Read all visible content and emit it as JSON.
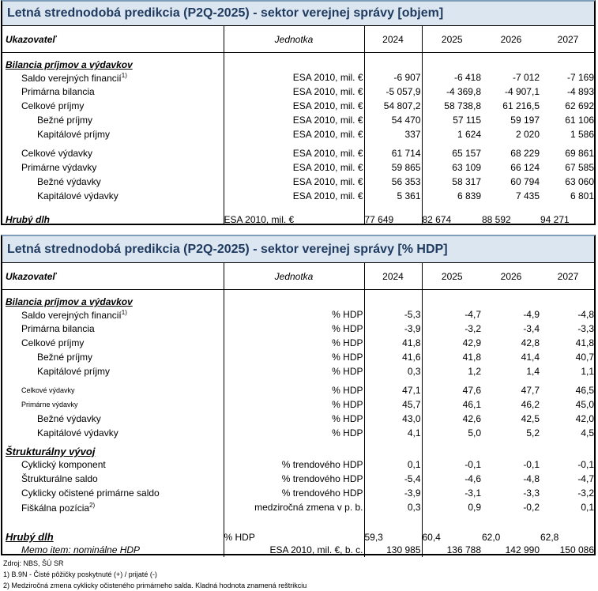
{
  "tables": [
    {
      "title": "Letná strednodobá predikcia (P2Q-2025) - sektor verejnej správy [objem]",
      "header": {
        "indicator": "Ukazovateľ",
        "unit": "Jednotka",
        "years": [
          "2024",
          "2025",
          "2026",
          "2027"
        ]
      },
      "rows": [
        {
          "type": "section",
          "label": "Bilancia príjmov a výdavkov"
        },
        {
          "label": "Saldo verejných financií",
          "sup": "1)",
          "level": 1,
          "unit": "ESA 2010, mil. €",
          "values": [
            "-6 907",
            "-6 418",
            "-7 012",
            "-7 169"
          ]
        },
        {
          "label": "Primárna bilancia",
          "level": 1,
          "unit": "ESA 2010, mil. €",
          "values": [
            "-5 057,9",
            "-4 369,8",
            "-4 907,1",
            "-4 893"
          ]
        },
        {
          "label": "Celkové príjmy",
          "level": 1,
          "unit": "ESA 2010, mil. €",
          "values": [
            "54 807,2",
            "58 738,8",
            "61 216,5",
            "62 692"
          ]
        },
        {
          "label": "Bežné príjmy",
          "level": 2,
          "unit": "ESA 2010, mil. €",
          "values": [
            "54 470",
            "57 115",
            "59 197",
            "61 106"
          ]
        },
        {
          "label": "Kapitálové príjmy",
          "level": 2,
          "unit": "ESA 2010, mil. €",
          "values": [
            "337",
            "1 624",
            "2 020",
            "1 586"
          ]
        },
        {
          "label": "Celkové výdavky",
          "level": 1,
          "unit": "ESA 2010, mil. €",
          "values": [
            "61 714",
            "65 157",
            "68 229",
            "69 861"
          ]
        },
        {
          "label": "Primárne výdavky",
          "level": 1,
          "unit": "ESA 2010, mil. €",
          "values": [
            "59 865",
            "63 109",
            "66 124",
            "67 585"
          ]
        },
        {
          "label": "Bežné výdavky",
          "level": 2,
          "unit": "ESA 2010, mil. €",
          "values": [
            "56 353",
            "58 317",
            "60 794",
            "63 060"
          ]
        },
        {
          "label": "Kapitálové výdavky",
          "level": 2,
          "unit": "ESA 2010, mil. €",
          "values": [
            "5 361",
            "6 839",
            "7 435",
            "6 801"
          ]
        },
        {
          "type": "section-values",
          "label": "Hrubý dlh",
          "unit": "ESA 2010, mil. €",
          "values": [
            "77 649",
            "82 674",
            "88 592",
            "94 271"
          ]
        }
      ]
    },
    {
      "title": "Letná strednodobá predikcia (P2Q-2025) - sektor verejnej správy [% HDP]",
      "header": {
        "indicator": "Ukazovateľ",
        "unit": "Jednotka",
        "years": [
          "2024",
          "2025",
          "2026",
          "2027"
        ]
      },
      "rows": [
        {
          "type": "section",
          "label": "Bilancia príjmov a výdavkov"
        },
        {
          "label": "Saldo verejných financií",
          "sup": "1)",
          "level": 1,
          "unit": "% HDP",
          "values": [
            "-5,3",
            "-4,7",
            "-4,9",
            "-4,8"
          ]
        },
        {
          "label": "Primárna bilancia",
          "level": 1,
          "unit": "% HDP",
          "values": [
            "-3,9",
            "-3,2",
            "-3,4",
            "-3,3"
          ]
        },
        {
          "label": "Celkové príjmy",
          "level": 1,
          "unit": "% HDP",
          "values": [
            "41,8",
            "42,9",
            "42,8",
            "41,8"
          ]
        },
        {
          "label": "Bežné príjmy",
          "level": 2,
          "unit": "% HDP",
          "values": [
            "41,6",
            "41,8",
            "41,4",
            "40,7"
          ]
        },
        {
          "label": "Kapitálové príjmy",
          "level": 2,
          "unit": "% HDP",
          "values": [
            "0,3",
            "1,2",
            "1,4",
            "1,1"
          ]
        },
        {
          "label": "Celkové výdavky",
          "level": 1,
          "unit": "% HDP",
          "values": [
            "47,1",
            "47,6",
            "47,7",
            "46,5"
          ]
        },
        {
          "label": "Primárne výdavky",
          "level": 1,
          "unit": "% HDP",
          "values": [
            "45,7",
            "46,1",
            "46,2",
            "45,0"
          ]
        },
        {
          "label": "Bežné výdavky",
          "level": 2,
          "unit": "% HDP",
          "values": [
            "43,0",
            "42,6",
            "42,5",
            "42,0"
          ]
        },
        {
          "label": "Kapitálové výdavky",
          "level": 2,
          "unit": "% HDP",
          "values": [
            "4,1",
            "5,0",
            "5,2",
            "4,5"
          ]
        },
        {
          "type": "section",
          "label": "Štrukturálny vývoj"
        },
        {
          "label": "Cyklický komponent",
          "level": 1,
          "unit": "% trendového HDP",
          "values": [
            "0,1",
            "-0,1",
            "-0,1",
            "-0,1"
          ]
        },
        {
          "label": "Štrukturálne saldo",
          "level": 1,
          "unit": "% trendového HDP",
          "values": [
            "-5,4",
            "-4,6",
            "-4,8",
            "-4,7"
          ]
        },
        {
          "label": "Cyklicky očistené primárne saldo",
          "level": 1,
          "unit": "% trendového HDP",
          "values": [
            "-3,9",
            "-3,1",
            "-3,3",
            "-3,2"
          ]
        },
        {
          "label": "Fiškálna pozícia",
          "sup": "2)",
          "level": 1,
          "unit": "medziročná zmena v p. b.",
          "values": [
            "0,3",
            "0,9",
            "-0,2",
            "0,1"
          ]
        },
        {
          "type": "section-values",
          "label": "Hrubý dlh",
          "unit": "% HDP",
          "values": [
            "59,3",
            "60,4",
            "62,0",
            "62,8"
          ]
        },
        {
          "type": "memo",
          "label": "Memo item: nominálne HDP",
          "level": 1,
          "unit": "ESA 2010, mil. €, b. c.",
          "values": [
            "130 985",
            "136 788",
            "142 990",
            "150 086"
          ]
        }
      ]
    }
  ],
  "notes": [
    "Zdroj: NBS, ŠÚ SR",
    "1) B.9N - Čisté pôžičky poskytnuté (+) / prijaté (-)",
    "2) Medziročná zmena cyklicky očisteného primárneho salda. Kladná hodnota znamená reštrikciu"
  ]
}
